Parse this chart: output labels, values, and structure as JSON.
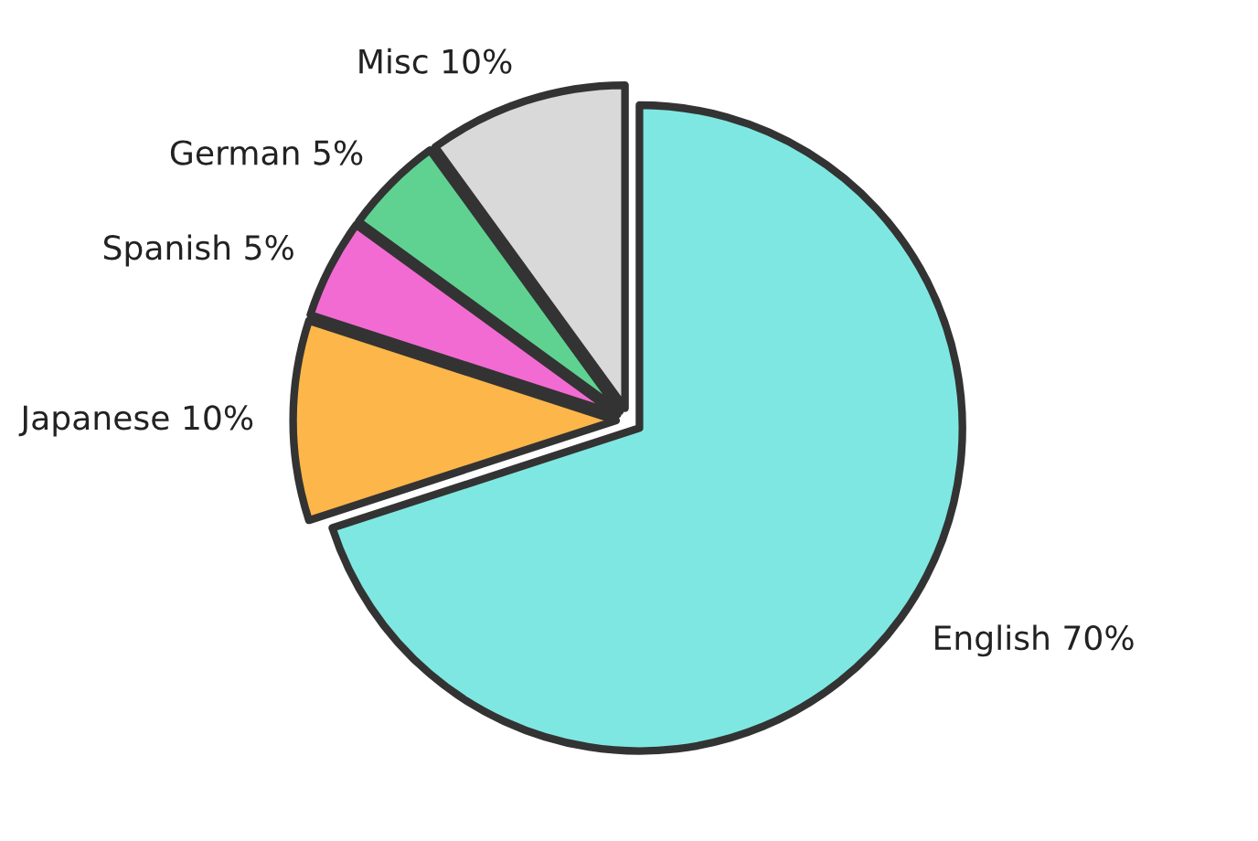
{
  "chart_data": {
    "type": "pie",
    "categories": [
      "English",
      "Japanese",
      "Spanish",
      "German",
      "Misc"
    ],
    "values": [
      70,
      10,
      5,
      5,
      10
    ],
    "value_labels": [
      "70%",
      "10%",
      "5%",
      "5%",
      "10%"
    ],
    "colors": [
      "#7fe7e2",
      "#fdb64a",
      "#f26bd2",
      "#5fd292",
      "#d9d9d9"
    ],
    "legend": false
  }
}
